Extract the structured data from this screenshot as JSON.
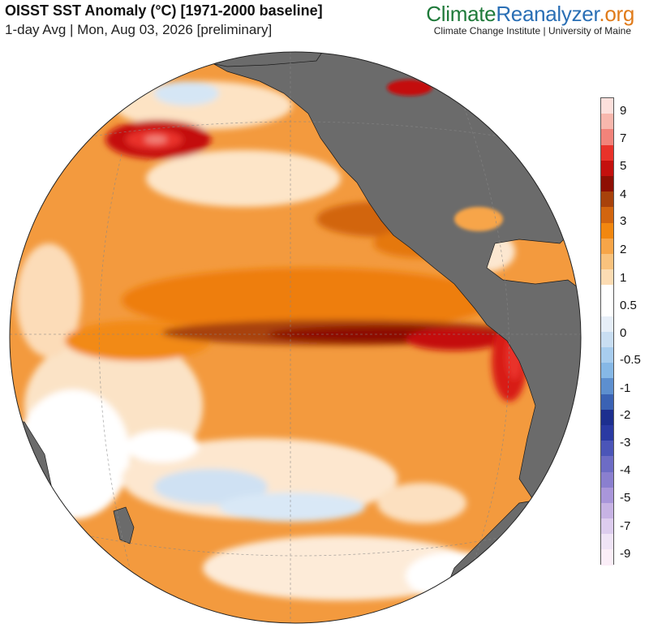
{
  "header": {
    "title": "OISST SST Anomaly (°C) [1971-2000 baseline]",
    "subtitle": "1-day Avg | Mon, Aug 03, 2026 [preliminary]"
  },
  "brand": {
    "part1": "Climate",
    "part2": "Reanalyzer",
    "part3": ".org",
    "subtitle": "Climate Change Institute | University of Maine"
  },
  "colorbar": {
    "tick_labels": [
      "9",
      "7",
      "5",
      "4",
      "3",
      "2",
      "1",
      "0.5",
      "0",
      "-0.5",
      "-1",
      "-2",
      "-3",
      "-4",
      "-5",
      "-7",
      "-9"
    ],
    "colors": [
      "#fde0dc",
      "#f8b7ad",
      "#f2837a",
      "#e9322a",
      "#c4100e",
      "#8e0f04",
      "#a8420b",
      "#d2650f",
      "#f2870f",
      "#f7a548",
      "#f9c27d",
      "#fcdcb3",
      "#ffffff",
      "#ffffff",
      "#e6eef8",
      "#c9def2",
      "#a8cdee",
      "#86b8e6",
      "#5d8fcf",
      "#3a62b4",
      "#1d2f8f",
      "#2a3aa3",
      "#4b55b8",
      "#6d6cc5",
      "#8a7fcf",
      "#a996da",
      "#c7b3e4",
      "#ddcdee",
      "#efe4f6",
      "#fbeef8"
    ]
  },
  "map": {
    "land_color": "#6b6b6b",
    "ocean_base_color": "#f39a3e"
  }
}
